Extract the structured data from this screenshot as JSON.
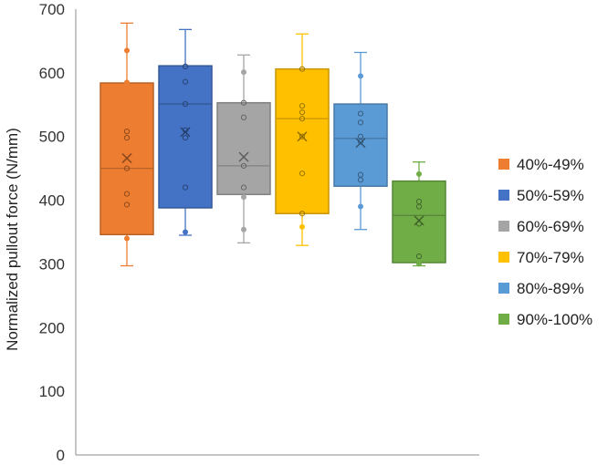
{
  "chart_data": {
    "type": "box",
    "title": "",
    "xlabel": "",
    "ylabel": "Normalized pullout force (N/mm)",
    "ylim": [
      0,
      700
    ],
    "yticks": [
      0,
      100,
      200,
      300,
      400,
      500,
      600,
      700
    ],
    "grid": false,
    "legend_position": "right",
    "series": [
      {
        "name": "40%-49%",
        "color": "#ED7D31",
        "whisker_low": 297,
        "q1": 346,
        "median": 450,
        "q3": 584,
        "whisker_high": 678,
        "mean": 466,
        "points": [
          340,
          393,
          410,
          450,
          498,
          508,
          585,
          635
        ]
      },
      {
        "name": "50%-59%",
        "color": "#4472C4",
        "whisker_low": 345,
        "q1": 388,
        "median": 551,
        "q3": 611,
        "whisker_high": 668,
        "mean": 507,
        "points": [
          350,
          420,
          498,
          510,
          551,
          586,
          610
        ]
      },
      {
        "name": "60%-69%",
        "color": "#A5A5A5",
        "whisker_low": 333,
        "q1": 409,
        "median": 454,
        "q3": 553,
        "whisker_high": 628,
        "mean": 468,
        "points": [
          354,
          405,
          420,
          454,
          530,
          553,
          601
        ]
      },
      {
        "name": "70%-79%",
        "color": "#FFC000",
        "whisker_low": 329,
        "q1": 379,
        "median": 528,
        "q3": 606,
        "whisker_high": 661,
        "mean": 500,
        "points": [
          358,
          379,
          442,
          500,
          528,
          538,
          548,
          606
        ]
      },
      {
        "name": "80%-89%",
        "color": "#5B9BD5",
        "whisker_low": 354,
        "q1": 422,
        "median": 497,
        "q3": 551,
        "whisker_high": 632,
        "mean": 490,
        "points": [
          390,
          432,
          440,
          492,
          500,
          522,
          536,
          595
        ]
      },
      {
        "name": "90%-100%",
        "color": "#70AD47",
        "whisker_low": 297,
        "q1": 302,
        "median": 376,
        "q3": 430,
        "whisker_high": 460,
        "mean": 368,
        "points": [
          300,
          312,
          363,
          390,
          398,
          441
        ]
      }
    ]
  }
}
